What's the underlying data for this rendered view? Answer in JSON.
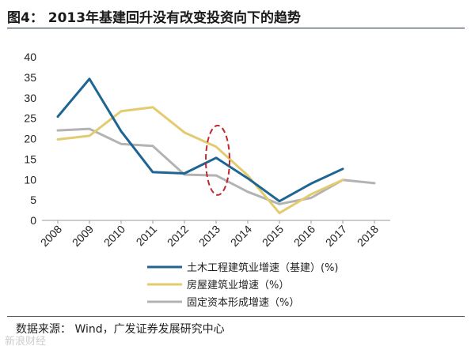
{
  "title": "图4：  2013年基建回升没有改变投资向下的趋势",
  "source": "数据来源： Wind，广发证券发展研究中心",
  "watermark": "新浪财经",
  "chart_data": {
    "type": "line",
    "categories": [
      "2008",
      "2009",
      "2010",
      "2011",
      "2012",
      "2013",
      "2014",
      "2015",
      "2016",
      "2017",
      "2018"
    ],
    "ylim": [
      0,
      40
    ],
    "yticks": [
      "0",
      "5",
      "10",
      "15",
      "20",
      "25",
      "30",
      "35",
      "40"
    ],
    "grid": false,
    "legend_position": "bottom",
    "series": [
      {
        "name": "土木工程建筑业增速（基建）(%)",
        "color": "#1f6592",
        "values": [
          25.4,
          34.6,
          21.8,
          11.8,
          11.5,
          15.3,
          10.3,
          4.7,
          9.0,
          12.6,
          null
        ]
      },
      {
        "name": "房屋建筑业增速（%）",
        "color": "#e3cb6f",
        "values": [
          19.8,
          20.7,
          26.7,
          27.7,
          21.5,
          18.0,
          11.0,
          1.8,
          6.4,
          9.9,
          null
        ]
      },
      {
        "name": "固定资本形成增速（%）",
        "color": "#b3b3b3",
        "values": [
          22.0,
          22.4,
          18.7,
          18.2,
          11.2,
          11.0,
          7.0,
          4.0,
          5.5,
          9.9,
          9.1
        ]
      }
    ],
    "annotation": {
      "type": "dashed-ellipse",
      "color": "#c0282d",
      "category": "2013"
    }
  }
}
